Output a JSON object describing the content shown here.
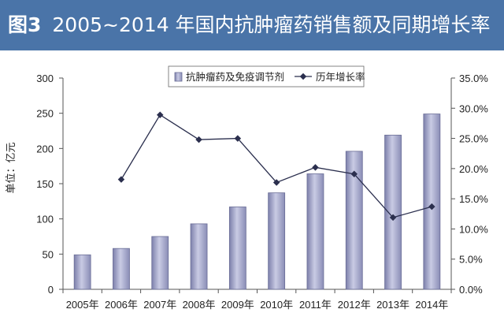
{
  "header": {
    "figure_label": "图3",
    "title_text": "2005~2014 年国内抗肿瘤药销售额及同期增长率",
    "background_color": "#4a74a8"
  },
  "chart_data": {
    "type": "bar",
    "categories": [
      "2005年",
      "2006年",
      "2007年",
      "2008年",
      "2009年",
      "2010年",
      "2011年",
      "2012年",
      "2013年",
      "2014年"
    ],
    "series": [
      {
        "name": "抗肿瘤药及免疫调节剂",
        "type": "bar",
        "axis": "left",
        "values": [
          49,
          58,
          75,
          93,
          117,
          137,
          164,
          196,
          219,
          249
        ],
        "color": "#a3a6c9"
      },
      {
        "name": "历年增长率",
        "type": "line",
        "axis": "right",
        "values": [
          null,
          18.2,
          28.9,
          24.8,
          25.0,
          17.7,
          20.2,
          19.1,
          11.9,
          13.7
        ],
        "color": "#2b2f4e"
      }
    ],
    "ylabel": "单位：亿元",
    "ylim": [
      0,
      300
    ],
    "yticks": [
      "0",
      "50",
      "100",
      "150",
      "200",
      "250",
      "300"
    ],
    "y2lim": [
      0,
      35
    ],
    "y2ticks": [
      "0.0%",
      "5.0%",
      "10.0%",
      "15.0%",
      "20.0%",
      "25.0%",
      "30.0%",
      "35.0%"
    ],
    "legend_position": "top-center",
    "grid": false
  }
}
